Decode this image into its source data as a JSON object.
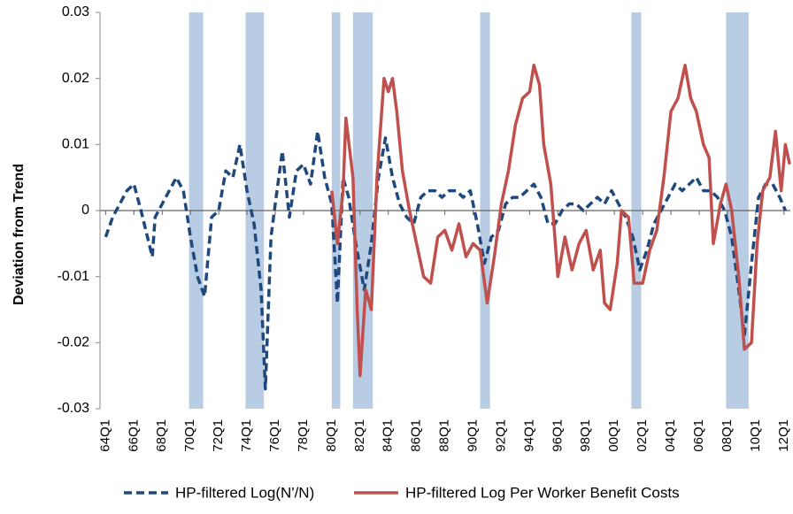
{
  "chart_data": {
    "type": "line",
    "y_label": "Deviation from Trend",
    "xlim": [
      1963.6,
      2012.45
    ],
    "ylim": [
      -0.03,
      0.03
    ],
    "yticks": [
      -0.03,
      -0.02,
      -0.01,
      0,
      0.01,
      0.02,
      0.03
    ],
    "xticks": [
      {
        "value": 1964,
        "label": "64Q1"
      },
      {
        "value": 1966,
        "label": "66Q1"
      },
      {
        "value": 1968,
        "label": "68Q1"
      },
      {
        "value": 1970,
        "label": "70Q1"
      },
      {
        "value": 1972,
        "label": "72Q1"
      },
      {
        "value": 1974,
        "label": "74Q1"
      },
      {
        "value": 1976,
        "label": "76Q1"
      },
      {
        "value": 1978,
        "label": "78Q1"
      },
      {
        "value": 1980,
        "label": "80Q1"
      },
      {
        "value": 1982,
        "label": "82Q1"
      },
      {
        "value": 1984,
        "label": "84Q1"
      },
      {
        "value": 1986,
        "label": "86Q1"
      },
      {
        "value": 1988,
        "label": "88Q1"
      },
      {
        "value": 1990,
        "label": "90Q1"
      },
      {
        "value": 1992,
        "label": "92Q1"
      },
      {
        "value": 1994,
        "label": "94Q1"
      },
      {
        "value": 1996,
        "label": "96Q1"
      },
      {
        "value": 1998,
        "label": "98Q1"
      },
      {
        "value": 2000,
        "label": "00Q1"
      },
      {
        "value": 2002,
        "label": "02Q1"
      },
      {
        "value": 2004,
        "label": "04Q1"
      },
      {
        "value": 2006,
        "label": "06Q1"
      },
      {
        "value": 2008,
        "label": "08Q1"
      },
      {
        "value": 2010,
        "label": "10Q1"
      },
      {
        "value": 2012,
        "label": "12Q1"
      }
    ],
    "recession_color": "#b8cce4",
    "recessions": [
      [
        1969.9,
        1970.9
      ],
      [
        1973.9,
        1975.2
      ],
      [
        1980.0,
        1980.6
      ],
      [
        1981.5,
        1982.9
      ],
      [
        1990.5,
        1991.2
      ],
      [
        2001.2,
        2001.9
      ],
      [
        2007.9,
        2009.5
      ]
    ],
    "series": [
      {
        "name": "HP-filtered Log(N'/N)",
        "color": "#1f497d",
        "dashed": true,
        "x": [
          1964.0,
          1964.5,
          1965.0,
          1965.5,
          1966.0,
          1966.5,
          1967.3,
          1967.5,
          1968.0,
          1968.5,
          1969.0,
          1969.5,
          1970.0,
          1970.5,
          1971.0,
          1971.5,
          1972.0,
          1972.5,
          1973.0,
          1973.5,
          1974.0,
          1974.5,
          1975.0,
          1975.3,
          1975.7,
          1976.0,
          1976.5,
          1977.0,
          1977.5,
          1978.0,
          1978.5,
          1979.0,
          1979.5,
          1980.0,
          1980.4,
          1980.8,
          1981.2,
          1981.7,
          1982.3,
          1982.8,
          1983.3,
          1983.8,
          1984.3,
          1984.8,
          1985.3,
          1985.8,
          1986.3,
          1986.8,
          1987.3,
          1987.8,
          1988.3,
          1988.8,
          1989.3,
          1989.8,
          1990.3,
          1990.8,
          1991.3,
          1991.8,
          1992.3,
          1992.8,
          1993.3,
          1993.8,
          1994.3,
          1994.8,
          1995.3,
          1995.8,
          1996.3,
          1996.8,
          1997.3,
          1997.8,
          1998.3,
          1998.8,
          1999.3,
          1999.8,
          2000.3,
          2000.8,
          2001.3,
          2001.8,
          2002.3,
          2002.8,
          2003.3,
          2003.8,
          2004.3,
          2004.8,
          2005.3,
          2005.8,
          2006.3,
          2006.8,
          2007.3,
          2007.8,
          2008.3,
          2008.8,
          2009.2,
          2009.7,
          2010.2,
          2010.7,
          2011.2,
          2011.7,
          2012.1
        ],
        "values": [
          -0.004,
          -0.001,
          0.001,
          0.003,
          0.004,
          0.0,
          -0.007,
          -0.001,
          0.001,
          0.003,
          0.005,
          0.003,
          -0.004,
          -0.01,
          -0.013,
          -0.001,
          0.0,
          0.006,
          0.005,
          0.01,
          0.003,
          -0.002,
          -0.012,
          -0.027,
          -0.004,
          0.001,
          0.009,
          -0.001,
          0.006,
          0.007,
          0.004,
          0.012,
          0.005,
          0.001,
          -0.014,
          0.005,
          0.002,
          -0.005,
          -0.012,
          -0.005,
          0.005,
          0.011,
          0.005,
          0.001,
          -0.001,
          -0.002,
          0.002,
          0.003,
          0.003,
          0.002,
          0.003,
          0.003,
          0.002,
          0.003,
          -0.002,
          -0.008,
          -0.004,
          -0.003,
          0.001,
          0.002,
          0.002,
          0.003,
          0.004,
          0.002,
          -0.002,
          -0.002,
          0.0,
          0.001,
          0.001,
          0.0,
          0.001,
          0.002,
          0.001,
          0.003,
          0.001,
          -0.001,
          -0.004,
          -0.009,
          -0.006,
          -0.002,
          0.0,
          0.002,
          0.004,
          0.003,
          0.004,
          0.005,
          0.003,
          0.003,
          0.002,
          0.0,
          -0.004,
          -0.012,
          -0.019,
          -0.008,
          0.002,
          0.004,
          0.004,
          0.002,
          0.0
        ]
      },
      {
        "name": "HP-filtered Log Per Worker Benefit Costs",
        "color": "#c0504d",
        "dashed": false,
        "x": [
          1980.0,
          1980.4,
          1980.8,
          1981.0,
          1981.5,
          1981.8,
          1982.0,
          1982.4,
          1982.8,
          1983.2,
          1983.7,
          1984.0,
          1984.3,
          1984.6,
          1985.0,
          1985.5,
          1986.0,
          1986.5,
          1987.0,
          1987.5,
          1988.0,
          1988.5,
          1989.0,
          1989.5,
          1990.0,
          1990.5,
          1991.0,
          1991.5,
          1992.0,
          1992.5,
          1993.0,
          1993.5,
          1994.0,
          1994.3,
          1994.7,
          1995.0,
          1995.5,
          1996.0,
          1996.5,
          1997.0,
          1997.5,
          1998.0,
          1998.5,
          1999.0,
          1999.3,
          1999.7,
          2000.2,
          2000.5,
          2001.0,
          2001.4,
          2002.0,
          2002.5,
          2003.0,
          2003.5,
          2004.0,
          2004.5,
          2005.0,
          2005.4,
          2005.8,
          2006.3,
          2006.7,
          2007.0,
          2007.5,
          2007.9,
          2008.3,
          2008.8,
          2009.2,
          2009.7,
          2010.1,
          2010.5,
          2011.0,
          2011.4,
          2011.8,
          2012.1,
          2012.4
        ],
        "values": [
          0.003,
          -0.005,
          0.003,
          0.014,
          0.005,
          -0.015,
          -0.025,
          -0.012,
          -0.015,
          0.005,
          0.02,
          0.018,
          0.02,
          0.015,
          0.006,
          0.0,
          -0.005,
          -0.01,
          -0.011,
          -0.004,
          -0.003,
          -0.006,
          -0.002,
          -0.007,
          -0.005,
          -0.006,
          -0.014,
          -0.007,
          0.001,
          0.006,
          0.013,
          0.017,
          0.018,
          0.022,
          0.019,
          0.01,
          0.004,
          -0.01,
          -0.004,
          -0.009,
          -0.005,
          -0.003,
          -0.009,
          -0.006,
          -0.014,
          -0.015,
          -0.008,
          0.0,
          -0.001,
          -0.011,
          -0.011,
          -0.006,
          -0.003,
          0.005,
          0.015,
          0.017,
          0.022,
          0.017,
          0.015,
          0.01,
          0.008,
          -0.005,
          0.001,
          0.004,
          0.0,
          -0.01,
          -0.021,
          -0.02,
          -0.005,
          0.003,
          0.005,
          0.012,
          0.003,
          0.01,
          0.007
        ]
      }
    ]
  }
}
